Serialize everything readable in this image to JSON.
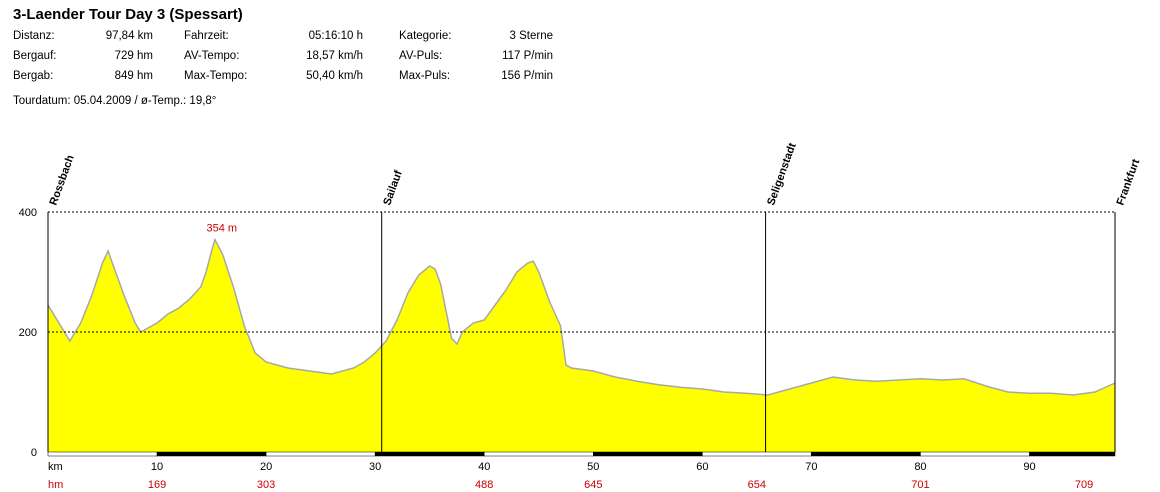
{
  "header": {
    "title": "3-Laender Tour Day 3 (Spessart)",
    "stats": [
      [
        {
          "label": "Distanz:",
          "value": "97,84 km"
        },
        {
          "label": "Fahrzeit:",
          "value": "05:16:10 h"
        },
        {
          "label": "Kategorie:",
          "value": "3 Sterne"
        }
      ],
      [
        {
          "label": "Bergauf:",
          "value": "729 hm"
        },
        {
          "label": "AV-Tempo:",
          "value": "18,57 km/h"
        },
        {
          "label": "AV-Puls:",
          "value": "117 P/min"
        }
      ],
      [
        {
          "label": "Bergab:",
          "value": "849 hm"
        },
        {
          "label": "Max-Tempo:",
          "value": "50,40 km/h"
        },
        {
          "label": "Max-Puls:",
          "value": "156 P/min"
        }
      ]
    ],
    "tourdate": "Tourdatum: 05.04.2009  /  ø-Temp.: 19,8°"
  },
  "chart_data": {
    "type": "area",
    "xlim": [
      0,
      97.84
    ],
    "ylim": [
      0,
      400
    ],
    "yticks": [
      0,
      200,
      400
    ],
    "xticks": [
      10,
      20,
      30,
      40,
      50,
      60,
      70,
      80,
      90
    ],
    "x_unit_label": "km",
    "hm_unit_label": "hm",
    "hm_labels": [
      {
        "km": 10,
        "value": "169"
      },
      {
        "km": 20,
        "value": "303"
      },
      {
        "km": 40,
        "value": "488"
      },
      {
        "km": 50,
        "value": "645"
      },
      {
        "km": 65,
        "value": "654"
      },
      {
        "km": 80,
        "value": "701"
      },
      {
        "km": 95,
        "value": "709"
      }
    ],
    "waypoints": [
      {
        "km": 0,
        "name": "Rossbach"
      },
      {
        "km": 30.6,
        "name": "Sailauf"
      },
      {
        "km": 65.8,
        "name": "Seligenstadt"
      },
      {
        "km": 97.84,
        "name": "Frankfurt"
      }
    ],
    "max_label": {
      "km": 15.2,
      "value": 354,
      "text": "354 m"
    },
    "grid": "dashed at 200 and 400",
    "fill_color": "#ffff00",
    "line_color": "#a8a8a8",
    "label_color": "#cc0000",
    "elevation": {
      "x": [
        0,
        1,
        2,
        3,
        4,
        5,
        5.5,
        6,
        7,
        8,
        8.5,
        9,
        10,
        11,
        12,
        13,
        14,
        14.5,
        15,
        15.3,
        16,
        17,
        18,
        19,
        20,
        21,
        22,
        24,
        26,
        27,
        28,
        29,
        30,
        31,
        32,
        33,
        34,
        35,
        35.5,
        36,
        37,
        37.5,
        38,
        39,
        40,
        41,
        42,
        43,
        44,
        44.5,
        45,
        46,
        47,
        47.5,
        48,
        50,
        52,
        54,
        56,
        58,
        60,
        62,
        64,
        66,
        68,
        70,
        72,
        74,
        76,
        78,
        80,
        82,
        84,
        86,
        88,
        90,
        92,
        94,
        96,
        97.84
      ],
      "y": [
        245,
        215,
        185,
        215,
        260,
        315,
        335,
        310,
        260,
        215,
        200,
        205,
        215,
        230,
        240,
        255,
        275,
        300,
        335,
        354,
        330,
        275,
        210,
        165,
        150,
        145,
        140,
        135,
        130,
        135,
        140,
        150,
        165,
        185,
        220,
        265,
        295,
        310,
        305,
        280,
        190,
        180,
        200,
        215,
        220,
        245,
        270,
        300,
        315,
        318,
        300,
        250,
        210,
        145,
        140,
        135,
        125,
        118,
        112,
        108,
        105,
        100,
        98,
        95,
        105,
        115,
        125,
        120,
        118,
        120,
        122,
        120,
        122,
        110,
        100,
        98,
        98,
        95,
        100,
        115
      ]
    }
  }
}
